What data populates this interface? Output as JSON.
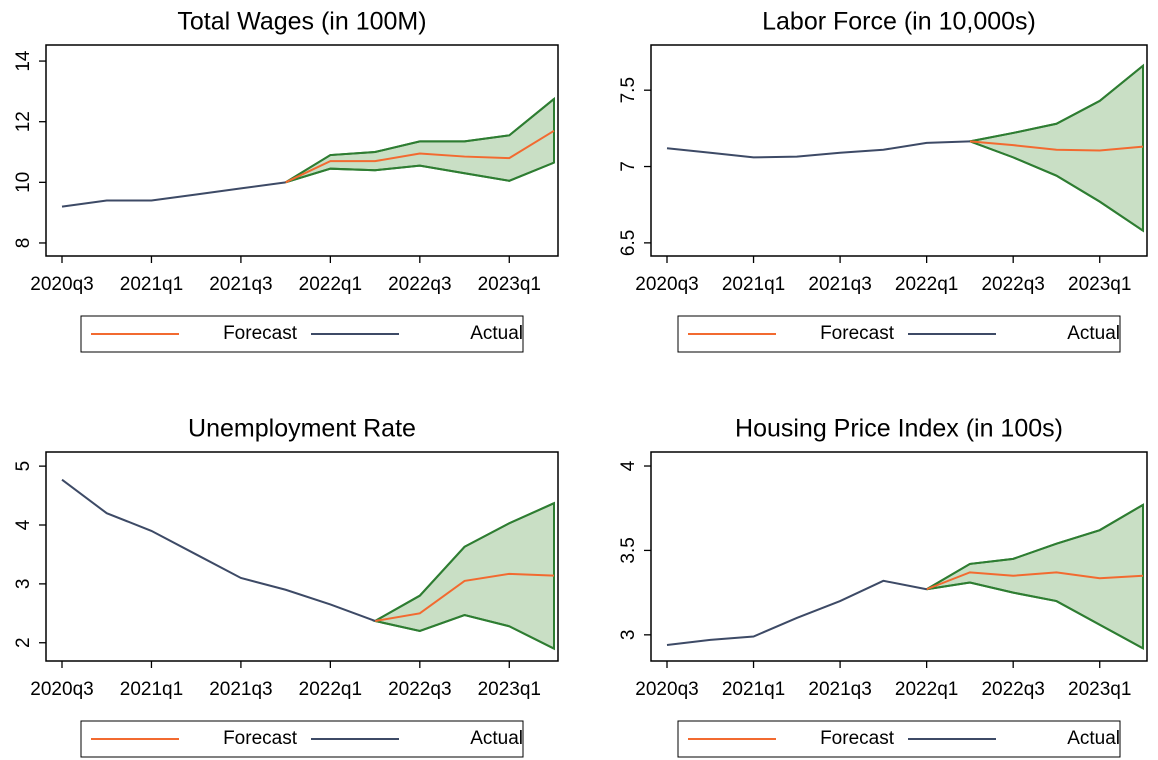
{
  "chart_data": [
    {
      "type": "line",
      "title": "Total Wages (in 100M)",
      "categories": [
        "2020q3",
        null,
        "2021q1",
        null,
        "2021q3",
        null,
        "2022q1",
        null,
        "2022q3",
        null,
        "2023q1",
        null
      ],
      "series": [
        {
          "name": "Forecast",
          "color": "#f26a30",
          "values": [
            null,
            null,
            null,
            null,
            null,
            10.0,
            10.7,
            10.7,
            10.95,
            10.85,
            10.8,
            11.7
          ]
        },
        {
          "name": "Actual",
          "color": "#3d4a66",
          "values": [
            9.2,
            9.4,
            9.4,
            9.6,
            9.8,
            10.0,
            null,
            null,
            null,
            null,
            null,
            null
          ]
        }
      ],
      "band": {
        "color": "#2e7d32",
        "fill": "#c9dfc5",
        "upper": [
          null,
          null,
          null,
          null,
          null,
          10.0,
          10.9,
          11.0,
          11.35,
          11.35,
          11.55,
          12.75
        ],
        "lower": [
          null,
          null,
          null,
          null,
          null,
          10.0,
          10.45,
          10.4,
          10.55,
          10.3,
          10.05,
          10.65
        ]
      },
      "ylim": [
        7.57,
        14.53
      ],
      "yticks": [
        8,
        10,
        12,
        14
      ],
      "legend": "bottom"
    },
    {
      "type": "line",
      "title": "Labor Force (in 10,000s)",
      "categories": [
        "2020q3",
        null,
        "2021q1",
        null,
        "2021q3",
        null,
        "2022q1",
        null,
        "2022q3",
        null,
        "2023q1",
        null
      ],
      "series": [
        {
          "name": "Forecast",
          "color": "#f26a30",
          "values": [
            null,
            null,
            null,
            null,
            null,
            null,
            null,
            7.165,
            7.14,
            7.11,
            7.105,
            7.13
          ]
        },
        {
          "name": "Actual",
          "color": "#3d4a66",
          "values": [
            7.12,
            7.09,
            7.06,
            7.065,
            7.09,
            7.11,
            7.155,
            7.165,
            null,
            null,
            null,
            null
          ]
        }
      ],
      "band": {
        "color": "#2e7d32",
        "fill": "#c9dfc5",
        "upper": [
          null,
          null,
          null,
          null,
          null,
          null,
          null,
          7.165,
          7.22,
          7.28,
          7.43,
          7.66
        ],
        "lower": [
          null,
          null,
          null,
          null,
          null,
          null,
          null,
          7.165,
          7.06,
          6.94,
          6.77,
          6.58
        ]
      },
      "ylim": [
        6.414,
        7.796
      ],
      "yticks": [
        6.5,
        7,
        7.5
      ],
      "legend": "bottom"
    },
    {
      "type": "line",
      "title": "Unemployment Rate",
      "categories": [
        "2020q3",
        null,
        "2021q1",
        null,
        "2021q3",
        null,
        "2022q1",
        null,
        "2022q3",
        null,
        "2023q1",
        null
      ],
      "series": [
        {
          "name": "Forecast",
          "color": "#f26a30",
          "values": [
            null,
            null,
            null,
            null,
            null,
            null,
            null,
            2.37,
            2.5,
            3.05,
            3.17,
            3.14
          ]
        },
        {
          "name": "Actual",
          "color": "#3d4a66",
          "values": [
            4.77,
            4.2,
            3.9,
            3.5,
            3.1,
            2.9,
            2.65,
            2.37,
            null,
            null,
            null,
            null
          ]
        }
      ],
      "band": {
        "color": "#2e7d32",
        "fill": "#c9dfc5",
        "upper": [
          null,
          null,
          null,
          null,
          null,
          null,
          null,
          2.37,
          2.8,
          3.63,
          4.03,
          4.37
        ],
        "lower": [
          null,
          null,
          null,
          null,
          null,
          null,
          null,
          2.37,
          2.2,
          2.47,
          2.28,
          1.9
        ]
      },
      "ylim": [
        1.69,
        5.24
      ],
      "yticks": [
        2,
        3,
        4,
        5
      ],
      "legend": "bottom"
    },
    {
      "type": "line",
      "title": "Housing Price Index (in 100s)",
      "categories": [
        "2020q3",
        null,
        "2021q1",
        null,
        "2021q3",
        null,
        "2022q1",
        null,
        "2022q3",
        null,
        "2023q1",
        null
      ],
      "series": [
        {
          "name": "Forecast",
          "color": "#f26a30",
          "values": [
            null,
            null,
            null,
            null,
            null,
            null,
            3.27,
            3.37,
            3.35,
            3.37,
            3.335,
            3.35
          ]
        },
        {
          "name": "Actual",
          "color": "#3d4a66",
          "values": [
            2.94,
            2.97,
            2.99,
            3.1,
            3.2,
            3.32,
            3.27,
            null,
            null,
            null,
            null,
            null
          ]
        }
      ],
      "band": {
        "color": "#2e7d32",
        "fill": "#c9dfc5",
        "upper": [
          null,
          null,
          null,
          null,
          null,
          null,
          3.27,
          3.42,
          3.45,
          3.54,
          3.62,
          3.77
        ],
        "lower": [
          null,
          null,
          null,
          null,
          null,
          null,
          3.27,
          3.31,
          3.25,
          3.2,
          3.06,
          2.92
        ]
      },
      "ylim": [
        2.845,
        4.083
      ],
      "yticks": [
        3,
        3.5,
        4
      ],
      "legend": "bottom"
    }
  ]
}
